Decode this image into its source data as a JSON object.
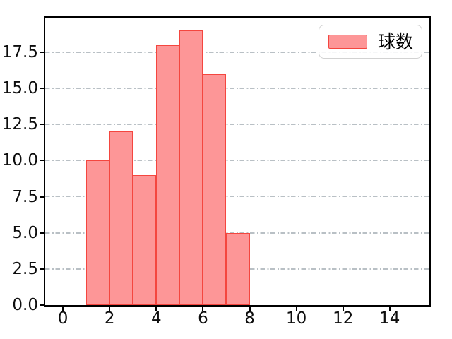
{
  "colors": {
    "bar_fill": "#fd9697",
    "bar_edge": "#f4463f",
    "grid": "#b9c0c5",
    "spine": "#000000",
    "legend_border": "#d2d2d2",
    "legend_bg": "rgba(255,255,255,0.85)"
  },
  "chart_data": {
    "type": "bar",
    "subtype": "histogram",
    "title": "",
    "xlabel": "",
    "ylabel": "",
    "bin_edges": [
      1,
      2,
      3,
      4,
      5,
      6,
      7,
      8
    ],
    "values": [
      10,
      12,
      9,
      18,
      19,
      16,
      5
    ],
    "series": [
      {
        "name": "球数",
        "values": [
          10,
          12,
          9,
          18,
          19,
          16,
          5
        ]
      }
    ],
    "xticks": [
      "0",
      "2",
      "4",
      "6",
      "8",
      "10",
      "12",
      "14"
    ],
    "xtick_values": [
      0,
      2,
      4,
      6,
      8,
      10,
      12,
      14
    ],
    "yticks": [
      "0.0",
      "2.5",
      "5.0",
      "7.5",
      "10.0",
      "12.5",
      "15.0",
      "17.5"
    ],
    "ytick_values": [
      0,
      2.5,
      5,
      7.5,
      10,
      12.5,
      15,
      17.5
    ],
    "xlim": [
      -0.76,
      15.7
    ],
    "ylim": [
      0,
      19.89
    ],
    "grid": {
      "axis": "y",
      "linestyle": "dashdot"
    },
    "legend": {
      "label": "球数",
      "position": "upper-right"
    }
  }
}
